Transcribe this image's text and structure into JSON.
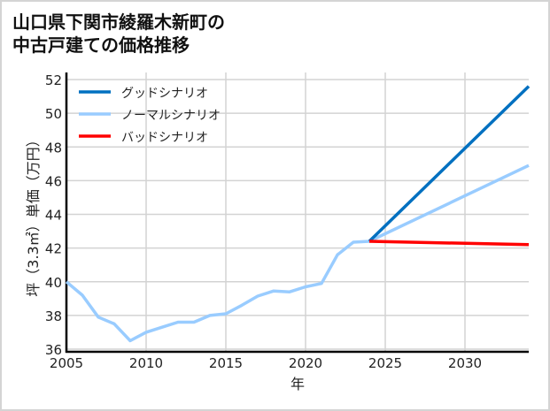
{
  "title": "山口県下関市綾羅木新町の\n中古戸建ての価格推移",
  "chart_data": {
    "type": "line",
    "title": "山口県下関市綾羅木新町の中古戸建ての価格推移",
    "xlabel": "年",
    "ylabel": "坪（3.3㎡）単価（万円）",
    "xlim": [
      2005,
      2034
    ],
    "ylim": [
      36,
      52
    ],
    "xticks": [
      2005,
      2010,
      2015,
      2020,
      2025,
      2030
    ],
    "yticks": [
      36,
      38,
      40,
      42,
      44,
      46,
      48,
      50,
      52
    ],
    "grid": true,
    "legend_position": "upper left",
    "series": [
      {
        "name": "グッドシナリオ",
        "color": "#0070c0",
        "x": [
          2024,
          2034
        ],
        "values": [
          42.4,
          51.6
        ]
      },
      {
        "name": "ノーマルシナリオ",
        "color": "#99ccff",
        "x": [
          2005,
          2006,
          2007,
          2008,
          2009,
          2010,
          2011,
          2012,
          2013,
          2014,
          2015,
          2016,
          2017,
          2018,
          2019,
          2020,
          2021,
          2022,
          2023,
          2024,
          2034
        ],
        "values": [
          40.0,
          39.2,
          37.9,
          37.5,
          36.5,
          37.0,
          37.3,
          37.6,
          37.6,
          38.0,
          38.1,
          38.6,
          39.15,
          39.45,
          39.4,
          39.7,
          39.9,
          41.6,
          42.35,
          42.4,
          46.9
        ]
      },
      {
        "name": "バッドシナリオ",
        "color": "#ff0000",
        "x": [
          2024,
          2034
        ],
        "values": [
          42.4,
          42.2
        ]
      }
    ]
  }
}
